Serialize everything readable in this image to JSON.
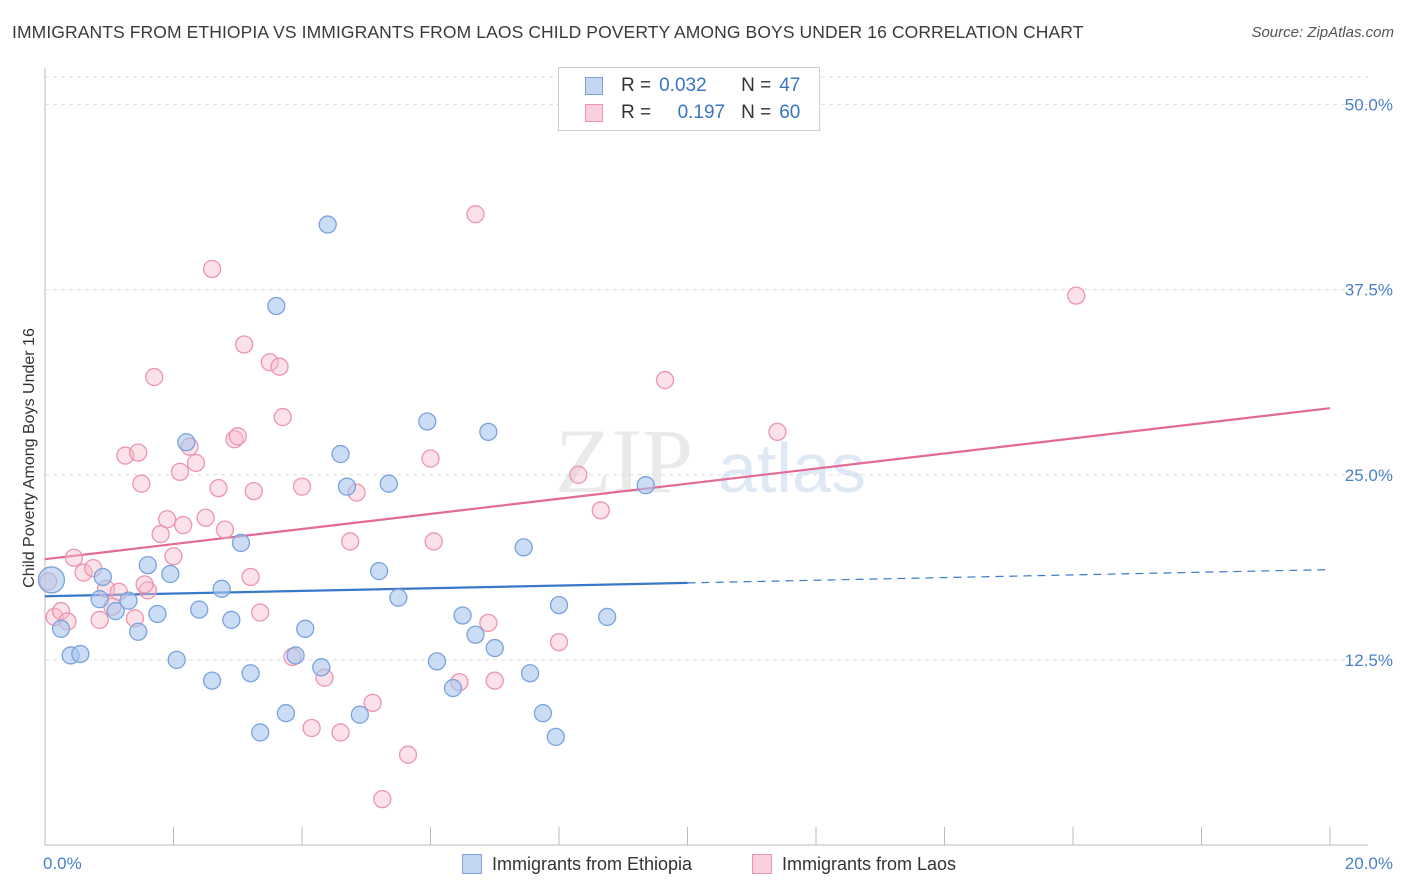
{
  "title": "IMMIGRANTS FROM ETHIOPIA VS IMMIGRANTS FROM LAOS CHILD POVERTY AMONG BOYS UNDER 16 CORRELATION CHART",
  "source": "Source: ZipAtlas.com",
  "watermark": {
    "zip": "ZIP",
    "atlas": "atlas"
  },
  "legend": {
    "r_label": "R =",
    "n_label": "N =",
    "rows": [
      {
        "r": "0.032",
        "n": "47"
      },
      {
        "r": "0.197",
        "n": "60"
      }
    ]
  },
  "colors": {
    "ethiopia_fill": "#a9c6ef",
    "ethiopia_stroke": "#7aa3de",
    "ethiopia_line": "#3a78c9",
    "laos_fill": "#f6bccd",
    "laos_stroke": "#ec95b0",
    "laos_line": "#e36b93",
    "tick_label": "#4a7fc8",
    "grid": "#dddddd"
  },
  "chart_data": {
    "type": "scatter",
    "title": "IMMIGRANTS FROM ETHIOPIA VS IMMIGRANTS FROM LAOS CHILD POVERTY AMONG BOYS UNDER 16 CORRELATION CHART",
    "xlabel": "",
    "ylabel": "Child Poverty Among Boys Under 16",
    "xlim": [
      0,
      20
    ],
    "ylim": [
      0,
      52
    ],
    "x_tick_labels": [
      "0.0%",
      "20.0%"
    ],
    "y_ticks": [
      12.5,
      25.0,
      37.5,
      50.0
    ],
    "y_tick_labels": [
      "12.5%",
      "25.0%",
      "37.5%",
      "50.0%"
    ],
    "grid": true,
    "legend_position": "top-center",
    "series": [
      {
        "name": "Immigrants from Ethiopia",
        "r": 0.032,
        "n": 47,
        "trend": {
          "x0": 0,
          "y0": 16.8,
          "x1": 10.0,
          "y1": 17.7,
          "dashed_to_x": 20.0,
          "dashed_to_y": 18.6
        },
        "points": [
          [
            0.1,
            17.9
          ],
          [
            0.25,
            14.6
          ],
          [
            0.4,
            12.8
          ],
          [
            0.55,
            12.9
          ],
          [
            0.85,
            16.6
          ],
          [
            0.9,
            18.1
          ],
          [
            1.1,
            15.8
          ],
          [
            1.3,
            16.5
          ],
          [
            1.45,
            14.4
          ],
          [
            1.6,
            18.9
          ],
          [
            1.75,
            15.6
          ],
          [
            1.95,
            18.3
          ],
          [
            2.05,
            12.5
          ],
          [
            2.2,
            27.2
          ],
          [
            2.4,
            15.9
          ],
          [
            2.6,
            11.1
          ],
          [
            2.75,
            17.3
          ],
          [
            2.9,
            15.2
          ],
          [
            3.05,
            20.4
          ],
          [
            3.2,
            11.6
          ],
          [
            3.35,
            7.6
          ],
          [
            3.6,
            36.4
          ],
          [
            3.75,
            8.9
          ],
          [
            3.9,
            12.8
          ],
          [
            4.05,
            14.6
          ],
          [
            4.3,
            12.0
          ],
          [
            4.4,
            41.9
          ],
          [
            4.6,
            26.4
          ],
          [
            4.7,
            24.2
          ],
          [
            4.9,
            8.8
          ],
          [
            5.2,
            18.5
          ],
          [
            5.35,
            24.4
          ],
          [
            5.5,
            16.7
          ],
          [
            5.95,
            28.6
          ],
          [
            6.1,
            12.4
          ],
          [
            6.35,
            10.6
          ],
          [
            6.5,
            15.5
          ],
          [
            6.7,
            14.2
          ],
          [
            6.9,
            27.9
          ],
          [
            7.0,
            13.3
          ],
          [
            7.45,
            20.1
          ],
          [
            7.55,
            11.6
          ],
          [
            7.75,
            8.9
          ],
          [
            7.95,
            7.3
          ],
          [
            8.0,
            16.2
          ],
          [
            8.75,
            15.4
          ],
          [
            9.35,
            24.3
          ]
        ]
      },
      {
        "name": "Immigrants from Laos",
        "r": 0.197,
        "n": 60,
        "trend": {
          "x0": 0,
          "y0": 19.3,
          "x1": 20.0,
          "y1": 29.5
        },
        "points": [
          [
            0.05,
            17.8
          ],
          [
            0.15,
            15.4
          ],
          [
            0.25,
            15.8
          ],
          [
            0.35,
            15.1
          ],
          [
            0.45,
            19.4
          ],
          [
            0.6,
            18.4
          ],
          [
            0.75,
            18.7
          ],
          [
            0.85,
            15.2
          ],
          [
            0.95,
            17.3
          ],
          [
            1.05,
            16.1
          ],
          [
            1.15,
            17.1
          ],
          [
            1.25,
            26.3
          ],
          [
            1.4,
            15.3
          ],
          [
            1.45,
            26.5
          ],
          [
            1.5,
            24.4
          ],
          [
            1.6,
            17.2
          ],
          [
            1.7,
            31.6
          ],
          [
            1.8,
            21.0
          ],
          [
            1.9,
            22.0
          ],
          [
            2.0,
            19.5
          ],
          [
            2.1,
            25.2
          ],
          [
            2.15,
            21.6
          ],
          [
            2.25,
            26.9
          ],
          [
            2.35,
            25.8
          ],
          [
            2.5,
            22.1
          ],
          [
            2.6,
            38.9
          ],
          [
            2.7,
            24.1
          ],
          [
            2.8,
            21.3
          ],
          [
            2.95,
            27.4
          ],
          [
            3.0,
            27.6
          ],
          [
            3.1,
            33.8
          ],
          [
            3.2,
            18.1
          ],
          [
            3.25,
            23.9
          ],
          [
            3.35,
            15.7
          ],
          [
            3.5,
            32.6
          ],
          [
            3.65,
            32.3
          ],
          [
            3.7,
            28.9
          ],
          [
            3.85,
            12.7
          ],
          [
            4.0,
            24.2
          ],
          [
            4.15,
            7.9
          ],
          [
            4.35,
            11.3
          ],
          [
            4.6,
            7.6
          ],
          [
            4.75,
            20.5
          ],
          [
            4.85,
            23.8
          ],
          [
            5.1,
            9.6
          ],
          [
            5.25,
            3.1
          ],
          [
            5.65,
            6.1
          ],
          [
            6.0,
            26.1
          ],
          [
            6.05,
            20.5
          ],
          [
            6.45,
            11.0
          ],
          [
            6.7,
            42.6
          ],
          [
            6.9,
            15.0
          ],
          [
            7.0,
            11.1
          ],
          [
            8.0,
            13.7
          ],
          [
            8.3,
            25.0
          ],
          [
            8.65,
            22.6
          ],
          [
            9.65,
            31.4
          ],
          [
            11.4,
            27.9
          ],
          [
            16.05,
            37.1
          ],
          [
            1.55,
            17.6
          ]
        ]
      }
    ]
  },
  "bottom_legend": [
    {
      "label": "Immigrants from Ethiopia"
    },
    {
      "label": "Immigrants from Laos"
    }
  ]
}
